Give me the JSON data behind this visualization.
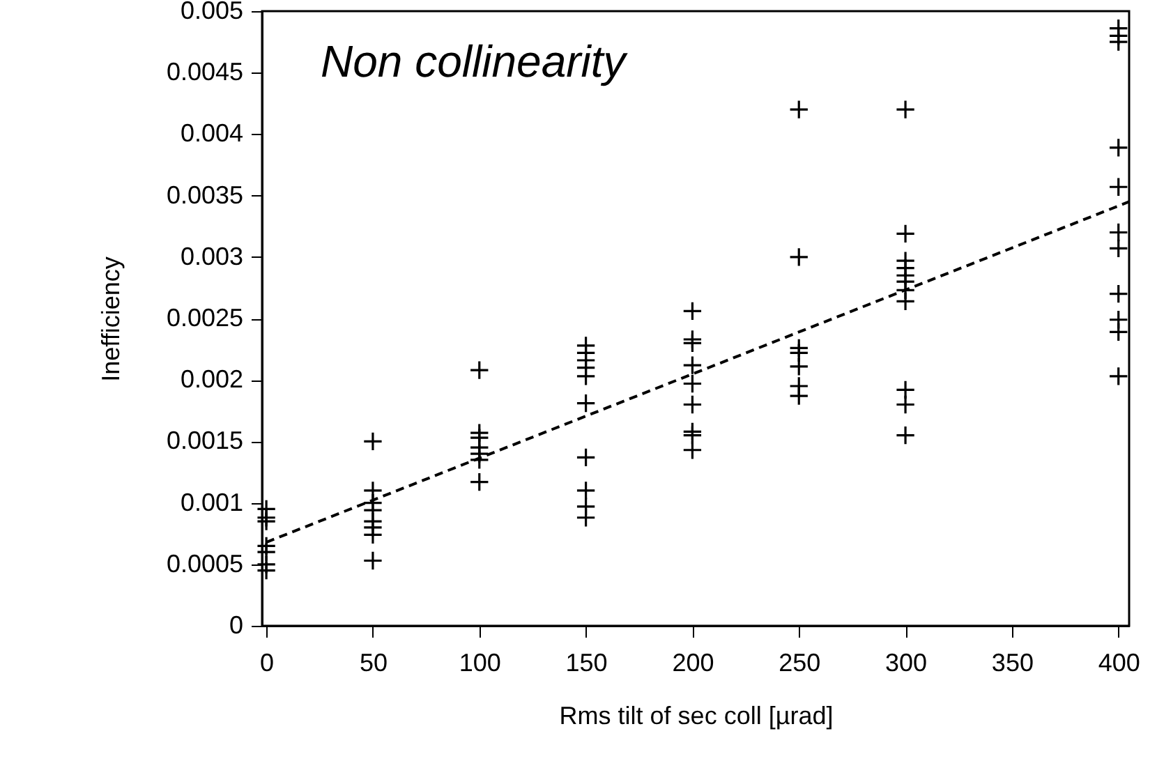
{
  "chart_data": {
    "type": "scatter",
    "xlabel": "Rms tilt of sec coll [µrad]",
    "ylabel": "Inefficiency",
    "annotations": [
      "Non collinearity"
    ],
    "xlim": [
      -2,
      405
    ],
    "xticks": [
      0,
      50,
      100,
      150,
      200,
      250,
      300,
      350,
      400
    ],
    "ylim": [
      0,
      0.005
    ],
    "yticks": [
      0,
      0.0005,
      0.001,
      0.0015,
      0.002,
      0.0025,
      0.003,
      0.0035,
      0.004,
      0.0045,
      0.005
    ],
    "grid": false,
    "marker": "cross",
    "series": [
      {
        "color": "#000000",
        "x": [
          0,
          0,
          0,
          0,
          0,
          0,
          0,
          50,
          50,
          50,
          50,
          50,
          50,
          50,
          50,
          100,
          100,
          100,
          100,
          100,
          100,
          100,
          150,
          150,
          150,
          150,
          150,
          150,
          150,
          150,
          150,
          150,
          200,
          200,
          200,
          200,
          200,
          200,
          200,
          200,
          200,
          250,
          250,
          250,
          250,
          250,
          250,
          250,
          300,
          300,
          300,
          300,
          300,
          300,
          300,
          300,
          300,
          300,
          300,
          400,
          400,
          400,
          400,
          400,
          400,
          400,
          400,
          400,
          400,
          400
        ],
        "values": [
          0.00095,
          0.00088,
          0.00085,
          0.00065,
          0.0006,
          0.0005,
          0.00045,
          0.0015,
          0.0011,
          0.001,
          0.00094,
          0.00085,
          0.0008,
          0.00074,
          0.00053,
          0.00208,
          0.00157,
          0.00153,
          0.00145,
          0.0014,
          0.00135,
          0.00117,
          0.00228,
          0.00222,
          0.00216,
          0.0021,
          0.00203,
          0.00181,
          0.00137,
          0.0011,
          0.00097,
          0.00088,
          0.00256,
          0.00233,
          0.0023,
          0.00212,
          0.00197,
          0.0018,
          0.00158,
          0.00155,
          0.00143,
          0.0042,
          0.003,
          0.00226,
          0.00222,
          0.00211,
          0.00195,
          0.00187,
          0.0042,
          0.00319,
          0.00297,
          0.00291,
          0.00285,
          0.0028,
          0.00273,
          0.00264,
          0.00192,
          0.0018,
          0.00155,
          0.00486,
          0.0048,
          0.00475,
          0.00389,
          0.00357,
          0.0032,
          0.00307,
          0.0027,
          0.00249,
          0.00239,
          0.00203
        ]
      },
      {
        "type": "line",
        "color": "#000000",
        "line_style": "dashed",
        "marker": "none",
        "x": [
          0,
          405
        ],
        "values": [
          0.00068,
          0.00345
        ]
      }
    ]
  }
}
